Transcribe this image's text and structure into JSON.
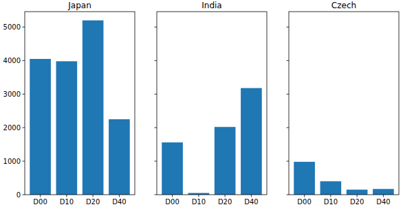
{
  "chart_data": [
    {
      "type": "bar",
      "title": "Japan",
      "categories": [
        "D00",
        "D10",
        "D20",
        "D40"
      ],
      "values": [
        4050,
        3980,
        5200,
        2250
      ],
      "color": "#1f77b4",
      "ylim": [
        0,
        5460
      ],
      "yticks": [
        0,
        1000,
        2000,
        3000,
        4000,
        5000
      ]
    },
    {
      "type": "bar",
      "title": "India",
      "categories": [
        "D00",
        "D10",
        "D20",
        "D40"
      ],
      "values": [
        1560,
        50,
        2020,
        3180
      ],
      "color": "#1f77b4",
      "ylim": [
        0,
        5460
      ],
      "yticks": [
        0,
        1000,
        2000,
        3000,
        4000,
        5000
      ],
      "tick_labels": "x"
    },
    {
      "type": "bar",
      "title": "Czech",
      "categories": [
        "D00",
        "D10",
        "D20",
        "D40"
      ],
      "values": [
        980,
        400,
        150,
        170
      ],
      "color": "#1f77b4",
      "ylim": [
        0,
        5460
      ],
      "yticks": [
        0,
        1000,
        2000,
        3000,
        4000,
        5000
      ],
      "tick_labels": "x"
    }
  ]
}
